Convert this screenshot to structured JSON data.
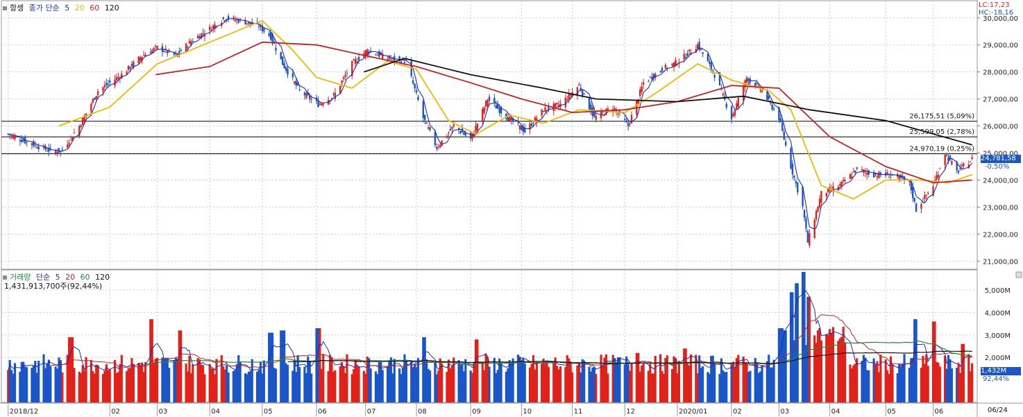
{
  "price_legend": {
    "title": "항셍",
    "ma_label": "종가 단순",
    "ma": [
      "5",
      "20",
      "60",
      "120"
    ]
  },
  "volume_legend": {
    "title": "거래량",
    "ma_label": "단순",
    "ma": [
      "5",
      "20",
      "60",
      "120"
    ],
    "total": "1,431,913,700주(92,44%)"
  },
  "corner": {
    "lc": "LC:17,23",
    "hc": "HC:-18,16"
  },
  "current_price": {
    "value": "24,781,58",
    "change": "-0,50%"
  },
  "current_volume": {
    "value": "1,432M",
    "ratio": "92,44%"
  },
  "h_lines": [
    {
      "label": "26,175,51 (5,09%)",
      "value": 26175.51
    },
    {
      "label": "25,599,05 (2,78%)",
      "value": 25599.05
    },
    {
      "label": "24,970,19 (0,25%)",
      "value": 24970.19
    }
  ],
  "footer_right": "06/24",
  "colors": {
    "up": "#e0221b",
    "down": "#1a56c7",
    "ma5": "#1e2bb8",
    "ma20": "#f0b800",
    "ma60": "#cc1f1f",
    "ma120": "#111111",
    "volma60": "#1c8a3a"
  },
  "chart_data": [
    {
      "type": "candlestick",
      "title": "항셍",
      "ylim": [
        20700,
        30200
      ],
      "y_ticks": [
        "30,000,00",
        "29,000,00",
        "28,000,00",
        "27,000,00",
        "26,000,00",
        "25,000,00",
        "24,000,00",
        "23,000,00",
        "22,000,00",
        "21,000,00"
      ],
      "y_tick_values": [
        30000,
        29000,
        28000,
        27000,
        26000,
        25000,
        24000,
        23000,
        22000,
        21000
      ],
      "x_ticks": [
        "2018/12",
        "02",
        "03",
        "04",
        "05",
        "06",
        "07",
        "08",
        "09",
        "10",
        "11",
        "12",
        "2020/01",
        "02",
        "03",
        "04",
        "05",
        "06"
      ],
      "x_tick_dates": [
        "2018-12-03",
        "2019-02-01",
        "2019-03-01",
        "2019-04-01",
        "2019-05-02",
        "2019-06-03",
        "2019-07-02",
        "2019-08-01",
        "2019-09-02",
        "2019-10-02",
        "2019-11-01",
        "2019-12-02",
        "2020-01-02",
        "2020-02-03",
        "2020-03-02",
        "2020-04-01",
        "2020-05-04",
        "2020-06-01"
      ],
      "close_path": [
        {
          "date": "2018-12-03",
          "close": 25700
        },
        {
          "date": "2018-12-14",
          "close": 25400
        },
        {
          "date": "2018-12-27",
          "close": 25100
        },
        {
          "date": "2019-01-03",
          "close": 25050
        },
        {
          "date": "2019-01-14",
          "close": 26000
        },
        {
          "date": "2019-01-25",
          "close": 27300
        },
        {
          "date": "2019-02-08",
          "close": 27900
        },
        {
          "date": "2019-02-20",
          "close": 28600
        },
        {
          "date": "2019-03-01",
          "close": 28900
        },
        {
          "date": "2019-03-12",
          "close": 28600
        },
        {
          "date": "2019-03-22",
          "close": 29200
        },
        {
          "date": "2019-04-01",
          "close": 29600
        },
        {
          "date": "2019-04-10",
          "close": 30000
        },
        {
          "date": "2019-04-19",
          "close": 29900
        },
        {
          "date": "2019-04-30",
          "close": 29700
        },
        {
          "date": "2019-05-07",
          "close": 29300
        },
        {
          "date": "2019-05-14",
          "close": 28300
        },
        {
          "date": "2019-05-24",
          "close": 27300
        },
        {
          "date": "2019-06-04",
          "close": 26800
        },
        {
          "date": "2019-06-13",
          "close": 27100
        },
        {
          "date": "2019-06-24",
          "close": 28300
        },
        {
          "date": "2019-07-03",
          "close": 28800
        },
        {
          "date": "2019-07-15",
          "close": 28500
        },
        {
          "date": "2019-07-26",
          "close": 28400
        },
        {
          "date": "2019-08-05",
          "close": 26300
        },
        {
          "date": "2019-08-13",
          "close": 25200
        },
        {
          "date": "2019-08-23",
          "close": 26000
        },
        {
          "date": "2019-09-02",
          "close": 25500
        },
        {
          "date": "2019-09-12",
          "close": 27000
        },
        {
          "date": "2019-09-24",
          "close": 26300
        },
        {
          "date": "2019-10-04",
          "close": 25800
        },
        {
          "date": "2019-10-15",
          "close": 26600
        },
        {
          "date": "2019-10-25",
          "close": 26800
        },
        {
          "date": "2019-11-05",
          "close": 27500
        },
        {
          "date": "2019-11-14",
          "close": 26300
        },
        {
          "date": "2019-11-25",
          "close": 26700
        },
        {
          "date": "2019-12-04",
          "close": 26000
        },
        {
          "date": "2019-12-13",
          "close": 27600
        },
        {
          "date": "2019-12-24",
          "close": 28100
        },
        {
          "date": "2020-01-03",
          "close": 28400
        },
        {
          "date": "2020-01-14",
          "close": 29000
        },
        {
          "date": "2020-01-24",
          "close": 27900
        },
        {
          "date": "2020-02-03",
          "close": 26300
        },
        {
          "date": "2020-02-12",
          "close": 27800
        },
        {
          "date": "2020-02-21",
          "close": 27300
        },
        {
          "date": "2020-03-02",
          "close": 26300
        },
        {
          "date": "2020-03-09",
          "close": 24500
        },
        {
          "date": "2020-03-16",
          "close": 23000
        },
        {
          "date": "2020-03-19",
          "close": 21700
        },
        {
          "date": "2020-03-27",
          "close": 23500
        },
        {
          "date": "2020-04-07",
          "close": 23800
        },
        {
          "date": "2020-04-17",
          "close": 24400
        },
        {
          "date": "2020-04-27",
          "close": 24200
        },
        {
          "date": "2020-05-08",
          "close": 24200
        },
        {
          "date": "2020-05-18",
          "close": 23900
        },
        {
          "date": "2020-05-22",
          "close": 22900
        },
        {
          "date": "2020-06-01",
          "close": 23800
        },
        {
          "date": "2020-06-08",
          "close": 25000
        },
        {
          "date": "2020-06-15",
          "close": 24300
        },
        {
          "date": "2020-06-24",
          "close": 24781.58
        }
      ],
      "ma20": [
        {
          "date": "2019-01-02",
          "v": 26000
        },
        {
          "date": "2019-02-01",
          "v": 26700
        },
        {
          "date": "2019-03-01",
          "v": 28300
        },
        {
          "date": "2019-04-01",
          "v": 29100
        },
        {
          "date": "2019-05-02",
          "v": 29900
        },
        {
          "date": "2019-05-20",
          "v": 28800
        },
        {
          "date": "2019-06-03",
          "v": 27800
        },
        {
          "date": "2019-06-24",
          "v": 27400
        },
        {
          "date": "2019-07-15",
          "v": 28400
        },
        {
          "date": "2019-08-01",
          "v": 28100
        },
        {
          "date": "2019-08-20",
          "v": 26200
        },
        {
          "date": "2019-09-05",
          "v": 25700
        },
        {
          "date": "2019-09-25",
          "v": 26400
        },
        {
          "date": "2019-10-15",
          "v": 26100
        },
        {
          "date": "2019-11-05",
          "v": 26600
        },
        {
          "date": "2019-12-02",
          "v": 26500
        },
        {
          "date": "2019-12-20",
          "v": 27200
        },
        {
          "date": "2020-01-14",
          "v": 28300
        },
        {
          "date": "2020-02-03",
          "v": 27700
        },
        {
          "date": "2020-02-25",
          "v": 27300
        },
        {
          "date": "2020-03-09",
          "v": 26600
        },
        {
          "date": "2020-03-27",
          "v": 23800
        },
        {
          "date": "2020-04-15",
          "v": 23300
        },
        {
          "date": "2020-05-04",
          "v": 24000
        },
        {
          "date": "2020-05-25",
          "v": 24000
        },
        {
          "date": "2020-06-10",
          "v": 23900
        },
        {
          "date": "2020-06-24",
          "v": 24200
        }
      ],
      "ma60": [
        {
          "date": "2019-02-28",
          "v": 27900
        },
        {
          "date": "2019-04-01",
          "v": 28200
        },
        {
          "date": "2019-05-02",
          "v": 29100
        },
        {
          "date": "2019-06-03",
          "v": 29000
        },
        {
          "date": "2019-07-02",
          "v": 28600
        },
        {
          "date": "2019-08-01",
          "v": 28200
        },
        {
          "date": "2019-09-02",
          "v": 27600
        },
        {
          "date": "2019-10-02",
          "v": 27000
        },
        {
          "date": "2019-11-01",
          "v": 26500
        },
        {
          "date": "2019-12-02",
          "v": 26600
        },
        {
          "date": "2020-01-02",
          "v": 26900
        },
        {
          "date": "2020-02-03",
          "v": 27500
        },
        {
          "date": "2020-03-02",
          "v": 27400
        },
        {
          "date": "2020-04-01",
          "v": 25600
        },
        {
          "date": "2020-05-04",
          "v": 24500
        },
        {
          "date": "2020-06-01",
          "v": 23900
        },
        {
          "date": "2020-06-24",
          "v": 24000
        }
      ],
      "ma120": [
        {
          "date": "2019-07-01",
          "v": 28000
        },
        {
          "date": "2019-07-25",
          "v": 28500
        },
        {
          "date": "2019-09-02",
          "v": 27900
        },
        {
          "date": "2019-10-15",
          "v": 27400
        },
        {
          "date": "2019-11-15",
          "v": 27000
        },
        {
          "date": "2020-01-02",
          "v": 26900
        },
        {
          "date": "2020-02-10",
          "v": 27100
        },
        {
          "date": "2020-03-20",
          "v": 26600
        },
        {
          "date": "2020-05-04",
          "v": 26200
        },
        {
          "date": "2020-06-24",
          "v": 25300
        }
      ]
    },
    {
      "type": "bar",
      "title": "거래량",
      "ylim": [
        0,
        5800
      ],
      "y_ticks": [
        "5,000M",
        "4,000M",
        "3,000M",
        "2,000M"
      ],
      "y_tick_values": [
        5000,
        4000,
        3000,
        2000
      ],
      "unit": "M",
      "highlights": [
        {
          "date": "2019-01-09",
          "v": 2900
        },
        {
          "date": "2019-02-25",
          "v": 3700
        },
        {
          "date": "2019-03-15",
          "v": 3200
        },
        {
          "date": "2019-05-07",
          "v": 3100
        },
        {
          "date": "2019-05-14",
          "v": 3200
        },
        {
          "date": "2019-06-04",
          "v": 3300
        },
        {
          "date": "2019-08-05",
          "v": 2900
        },
        {
          "date": "2019-09-06",
          "v": 2800
        },
        {
          "date": "2019-12-09",
          "v": 2200
        },
        {
          "date": "2020-01-06",
          "v": 2400
        },
        {
          "date": "2020-03-03",
          "v": 3300
        },
        {
          "date": "2020-03-09",
          "v": 4900
        },
        {
          "date": "2020-03-13",
          "v": 5300
        },
        {
          "date": "2020-03-16",
          "v": 5800
        },
        {
          "date": "2020-03-20",
          "v": 4700
        },
        {
          "date": "2020-05-22",
          "v": 3700
        },
        {
          "date": "2020-06-01",
          "v": 3600
        },
        {
          "date": "2020-06-19",
          "v": 2600
        }
      ]
    }
  ]
}
